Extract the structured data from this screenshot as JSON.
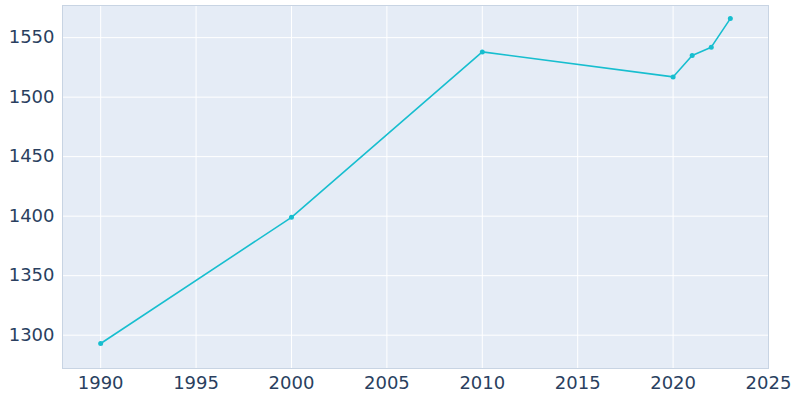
{
  "chart_data": {
    "type": "line",
    "x": [
      1990,
      2000,
      2010,
      2020,
      2021,
      2022,
      2023
    ],
    "values": [
      1293,
      1399,
      1538,
      1517,
      1535,
      1542,
      1566
    ],
    "color": "#17becf",
    "marker": "circle",
    "xlim": [
      1988,
      2025
    ],
    "xticks": [
      1990,
      1995,
      2000,
      2005,
      2010,
      2015,
      2020,
      2025
    ],
    "ylim": [
      1272,
      1577
    ],
    "yticks": [
      1300,
      1350,
      1400,
      1450,
      1500,
      1550
    ],
    "grid": true
  }
}
